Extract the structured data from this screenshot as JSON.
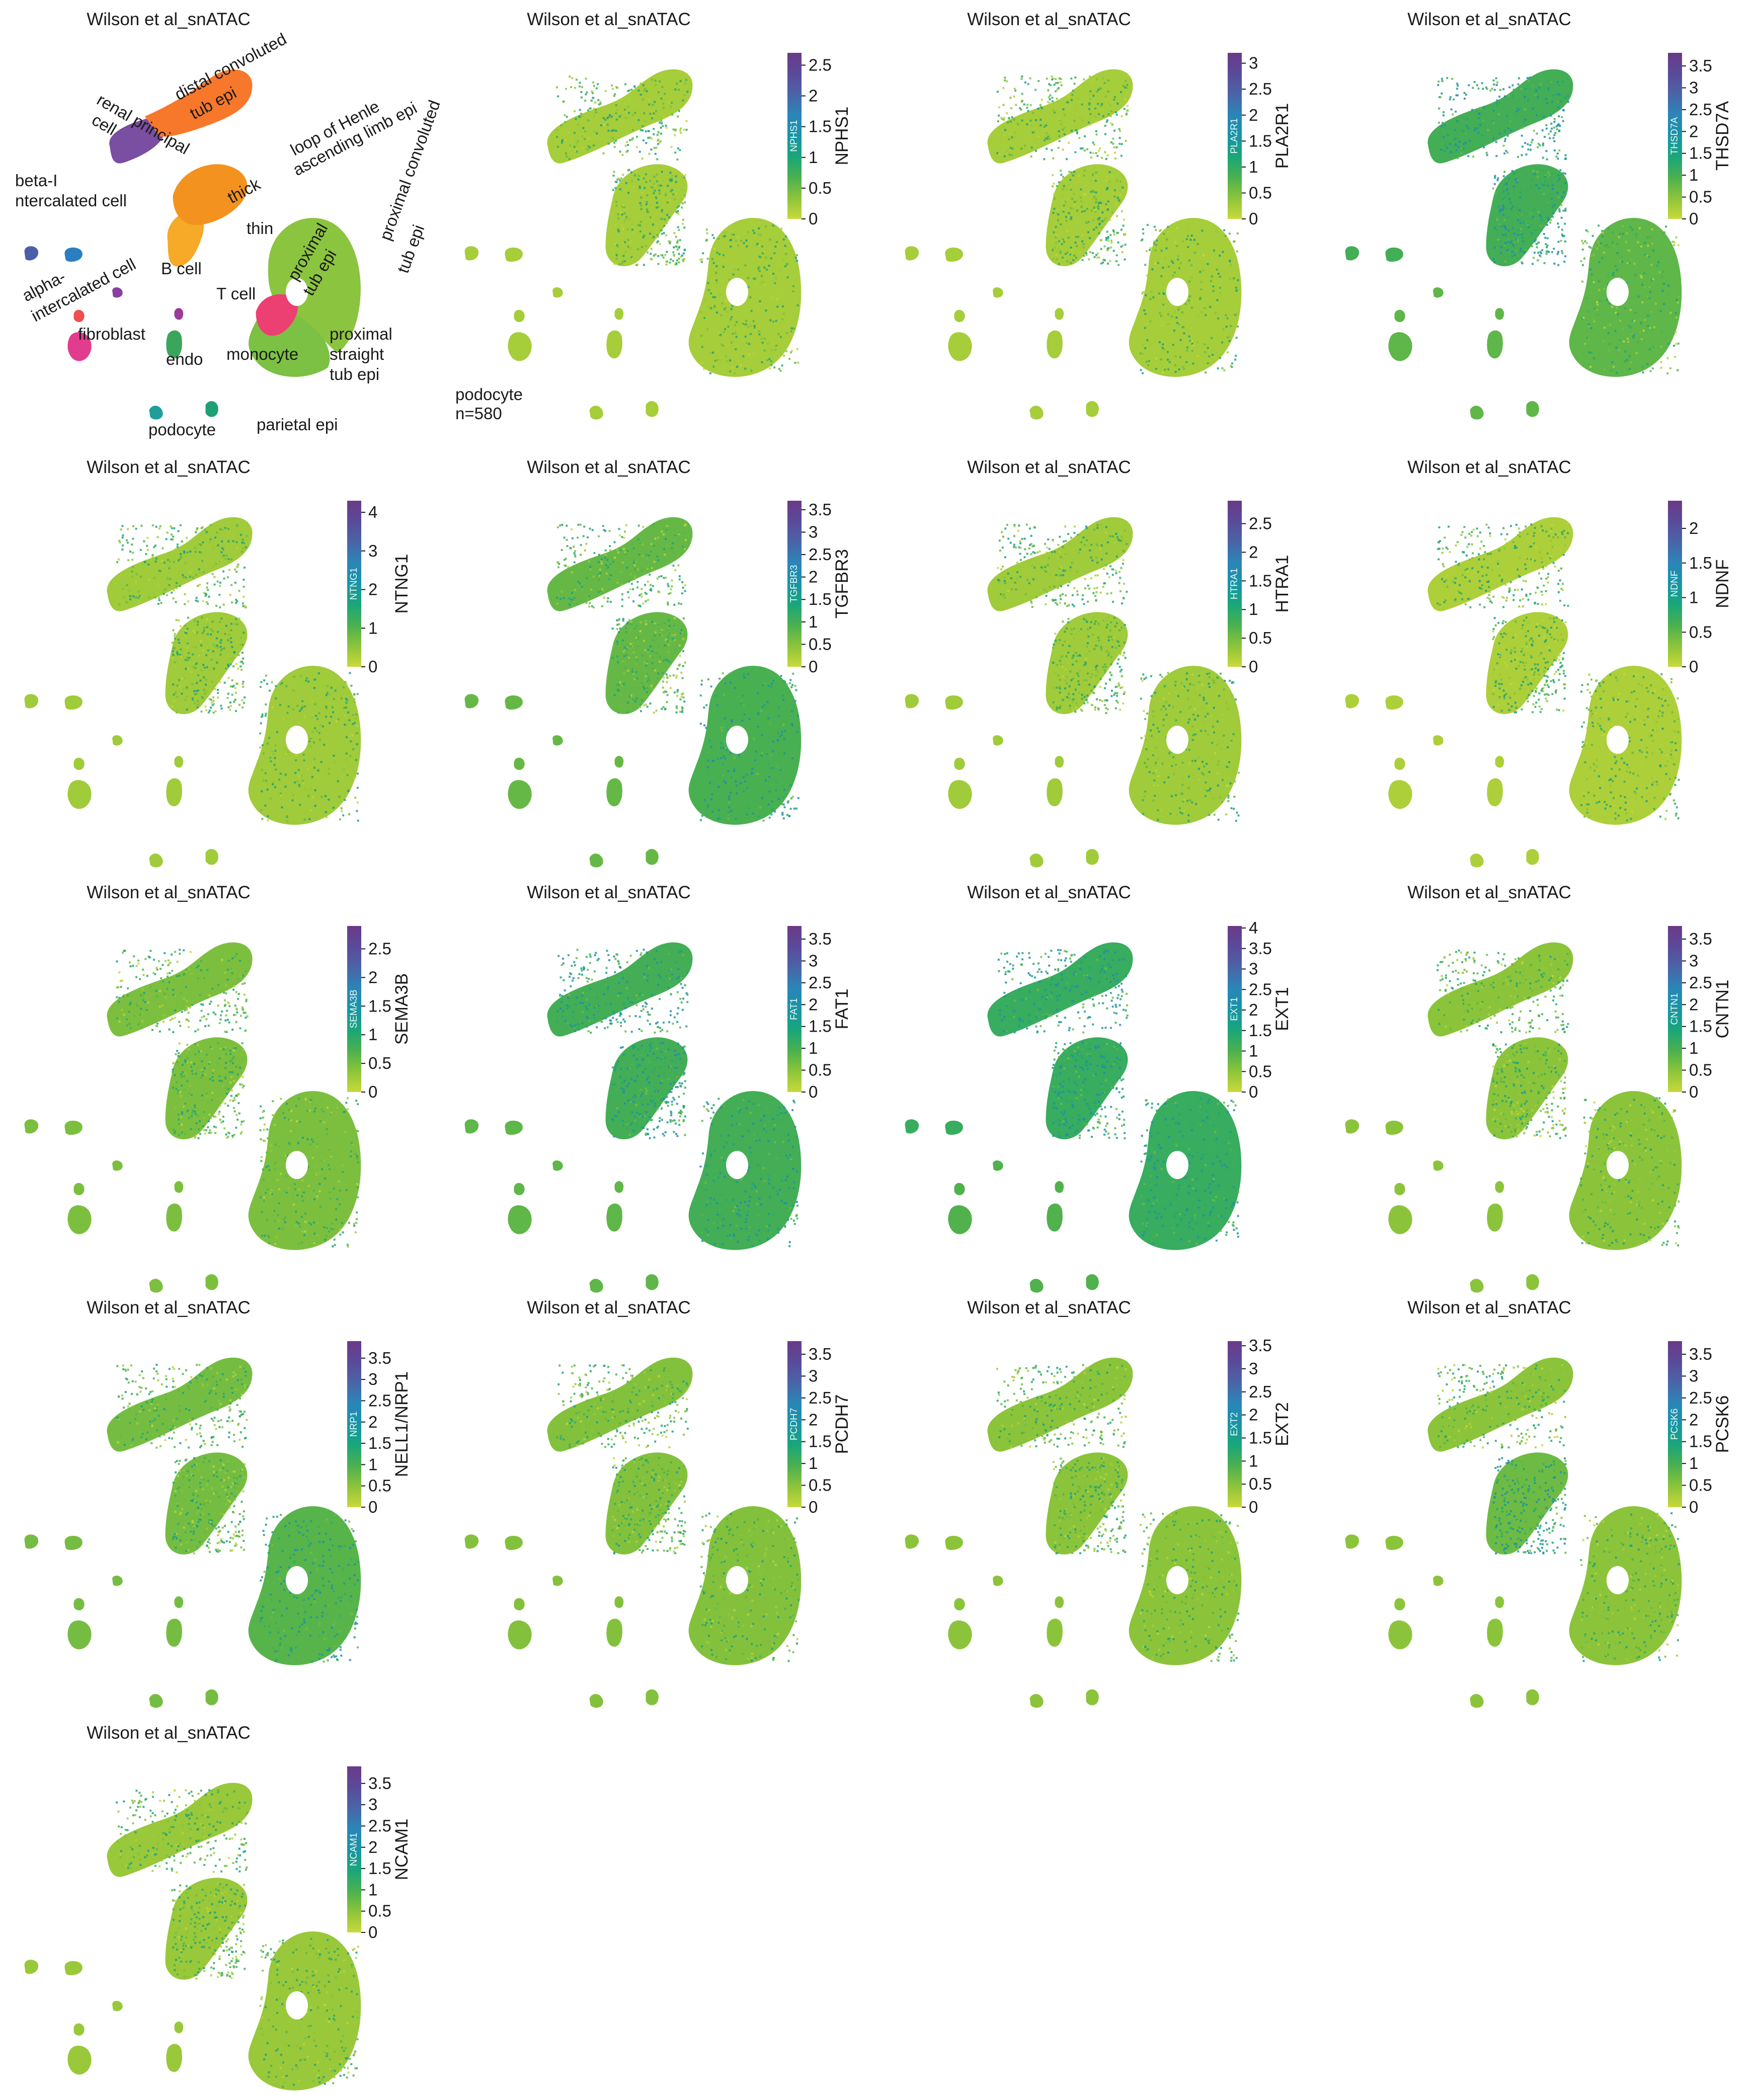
{
  "chart_data": [
    {
      "type": "scatter",
      "variant": "umap-cluster-labels",
      "title": "Wilson et al_snATAC",
      "cluster_labels": [
        "distal convoluted tub epi",
        "renal principal cell",
        "loop of Henle ascending limb epi",
        "thick",
        "thin",
        "beta-I ntercalated cell",
        "alpha- intercalated cell",
        "proximal tub epi",
        "proximal convoluted tub epi",
        "B cell",
        "T cell",
        "fibroblast",
        "endo",
        "monocyte",
        "proximal straight tub epi",
        "podocyte",
        "parietal epi"
      ],
      "cluster_colors": {
        "distal convoluted tub epi": "#f7782a",
        "renal principal cell": "#7a4ea0",
        "thick": "#f3921f",
        "thin": "#f7a928",
        "beta-I ntercalated cell": "#4a5fa8",
        "alpha- intercalated cell": "#2a7fc0",
        "proximal tub epi": "#ec3f72",
        "proximal convoluted tub epi": "#8bc43f",
        "proximal straight tub epi": "#7cc143",
        "B cell": "#8a3fa0",
        "T cell": "#9a3a9a",
        "fibroblast": "#ef4f4f",
        "endo": "#e23c8e",
        "monocyte": "#3aa65b",
        "podocyte": "#1f9e9a",
        "parietal epi": "#1fa074"
      }
    },
    {
      "type": "scatter",
      "variant": "umap-feature",
      "title": "Wilson et al_snATAC",
      "gene": "NPHS1",
      "colorbar_ticks": [
        "2.5",
        "2",
        "1.5",
        "1",
        "0.5",
        "0"
      ],
      "colorbar_range": [
        0,
        2.7
      ],
      "mean_level": 0.25,
      "annotation": [
        "podocyte",
        "n=580"
      ]
    },
    {
      "type": "scatter",
      "variant": "umap-feature",
      "title": "Wilson et al_snATAC",
      "gene": "PLA2R1",
      "colorbar_ticks": [
        "3",
        "2.5",
        "2",
        "1.5",
        "1",
        "0.5",
        "0"
      ],
      "colorbar_range": [
        0,
        3.2
      ],
      "mean_level": 0.25
    },
    {
      "type": "scatter",
      "variant": "umap-feature",
      "title": "Wilson et al_snATAC",
      "gene": "THSD7A",
      "colorbar_ticks": [
        "3.5",
        "3",
        "2.5",
        "2",
        "1.5",
        "1",
        "0.5",
        "0"
      ],
      "colorbar_range": [
        0,
        3.8
      ],
      "mean_level": 0.75,
      "high_clusters": [
        "A",
        "B",
        "D",
        "E"
      ]
    },
    {
      "type": "scatter",
      "variant": "umap-feature",
      "title": "Wilson et al_snATAC",
      "gene": "NTNG1",
      "colorbar_ticks": [
        "4",
        "3",
        "2",
        "1",
        "0"
      ],
      "colorbar_range": [
        0,
        4.3
      ],
      "mean_level": 0.3
    },
    {
      "type": "scatter",
      "variant": "umap-feature",
      "title": "Wilson et al_snATAC",
      "gene": "TGFBR3",
      "colorbar_ticks": [
        "3.5",
        "3",
        "2.5",
        "2",
        "1.5",
        "1",
        "0.5",
        "0"
      ],
      "colorbar_range": [
        0,
        3.7
      ],
      "mean_level": 0.7,
      "high_clusters": [
        "C",
        "P",
        "R"
      ]
    },
    {
      "type": "scatter",
      "variant": "umap-feature",
      "title": "Wilson et al_snATAC",
      "gene": "HTRA1",
      "colorbar_ticks": [
        "2.5",
        "2",
        "1.5",
        "1",
        "0.5",
        "0"
      ],
      "colorbar_range": [
        0,
        2.9
      ],
      "mean_level": 0.3
    },
    {
      "type": "scatter",
      "variant": "umap-feature",
      "title": "Wilson et al_snATAC",
      "gene": "NDNF",
      "colorbar_ticks": [
        "2",
        "1.5",
        "1",
        "0.5",
        "0"
      ],
      "colorbar_range": [
        0,
        2.4
      ],
      "mean_level": 0.2
    },
    {
      "type": "scatter",
      "variant": "umap-feature",
      "title": "Wilson et al_snATAC",
      "gene": "SEMA3B",
      "colorbar_ticks": [
        "2.5",
        "2",
        "1.5",
        "1",
        "0.5",
        "0"
      ],
      "colorbar_range": [
        0,
        2.9
      ],
      "mean_level": 0.55
    },
    {
      "type": "scatter",
      "variant": "umap-feature",
      "title": "Wilson et al_snATAC",
      "gene": "FAT1",
      "colorbar_ticks": [
        "3.5",
        "3",
        "2.5",
        "2",
        "1.5",
        "1",
        "0.5",
        "0"
      ],
      "colorbar_range": [
        0,
        3.8
      ],
      "mean_level": 0.75,
      "high_clusters": [
        "A",
        "B",
        "C"
      ]
    },
    {
      "type": "scatter",
      "variant": "umap-feature",
      "title": "Wilson et al_snATAC",
      "gene": "EXT1",
      "colorbar_ticks": [
        "4",
        "3.5",
        "3",
        "2.5",
        "2",
        "1.5",
        "1",
        "0.5",
        "0"
      ],
      "colorbar_range": [
        0,
        4.05
      ],
      "mean_level": 0.85,
      "high_clusters": [
        "A",
        "B",
        "C",
        "D",
        "E"
      ]
    },
    {
      "type": "scatter",
      "variant": "umap-feature",
      "title": "Wilson et al_snATAC",
      "gene": "CNTN1",
      "colorbar_ticks": [
        "3.5",
        "3",
        "2.5",
        "2",
        "1.5",
        "1",
        "0.5",
        "0"
      ],
      "colorbar_range": [
        0,
        3.8
      ],
      "mean_level": 0.45
    },
    {
      "type": "scatter",
      "variant": "umap-feature",
      "title": "Wilson et al_snATAC",
      "gene": "NELL1/NRP1",
      "bar_gene": "NRP1",
      "colorbar_ticks": [
        "3.5",
        "3",
        "2.5",
        "2",
        "1.5",
        "1",
        "0.5",
        "0"
      ],
      "colorbar_range": [
        0,
        3.9
      ],
      "mean_level": 0.6,
      "high_clusters": [
        "C"
      ]
    },
    {
      "type": "scatter",
      "variant": "umap-feature",
      "title": "Wilson et al_snATAC",
      "gene": "PCDH7",
      "colorbar_ticks": [
        "3.5",
        "3",
        "2.5",
        "2",
        "1.5",
        "1",
        "0.5",
        "0"
      ],
      "colorbar_range": [
        0,
        3.8
      ],
      "mean_level": 0.5
    },
    {
      "type": "scatter",
      "variant": "umap-feature",
      "title": "Wilson et al_snATAC",
      "gene": "EXT2",
      "colorbar_ticks": [
        "3.5",
        "3",
        "2.5",
        "2",
        "1.5",
        "1",
        "0.5",
        "0"
      ],
      "colorbar_range": [
        0,
        3.6
      ],
      "mean_level": 0.45
    },
    {
      "type": "scatter",
      "variant": "umap-feature",
      "title": "Wilson et al_snATAC",
      "gene": "PCSK6",
      "colorbar_ticks": [
        "3.5",
        "3",
        "2.5",
        "2",
        "1.5",
        "1",
        "0.5",
        "0"
      ],
      "colorbar_range": [
        0,
        3.8
      ],
      "mean_level": 0.45,
      "high_clusters": [
        "B"
      ]
    },
    {
      "type": "scatter",
      "variant": "umap-feature",
      "title": "Wilson et al_snATAC",
      "gene": "NCAM1",
      "colorbar_ticks": [
        "3.5",
        "3",
        "2.5",
        "2",
        "1.5",
        "1",
        "0.5",
        "0"
      ],
      "colorbar_range": [
        0,
        3.9
      ],
      "mean_level": 0.35
    }
  ],
  "colormap": [
    "#c9d93a",
    "#8cc43a",
    "#4bb04f",
    "#19a67a",
    "#1894a6",
    "#2a86b8",
    "#4a64a8",
    "#5a4a9a",
    "#6a3a88"
  ]
}
